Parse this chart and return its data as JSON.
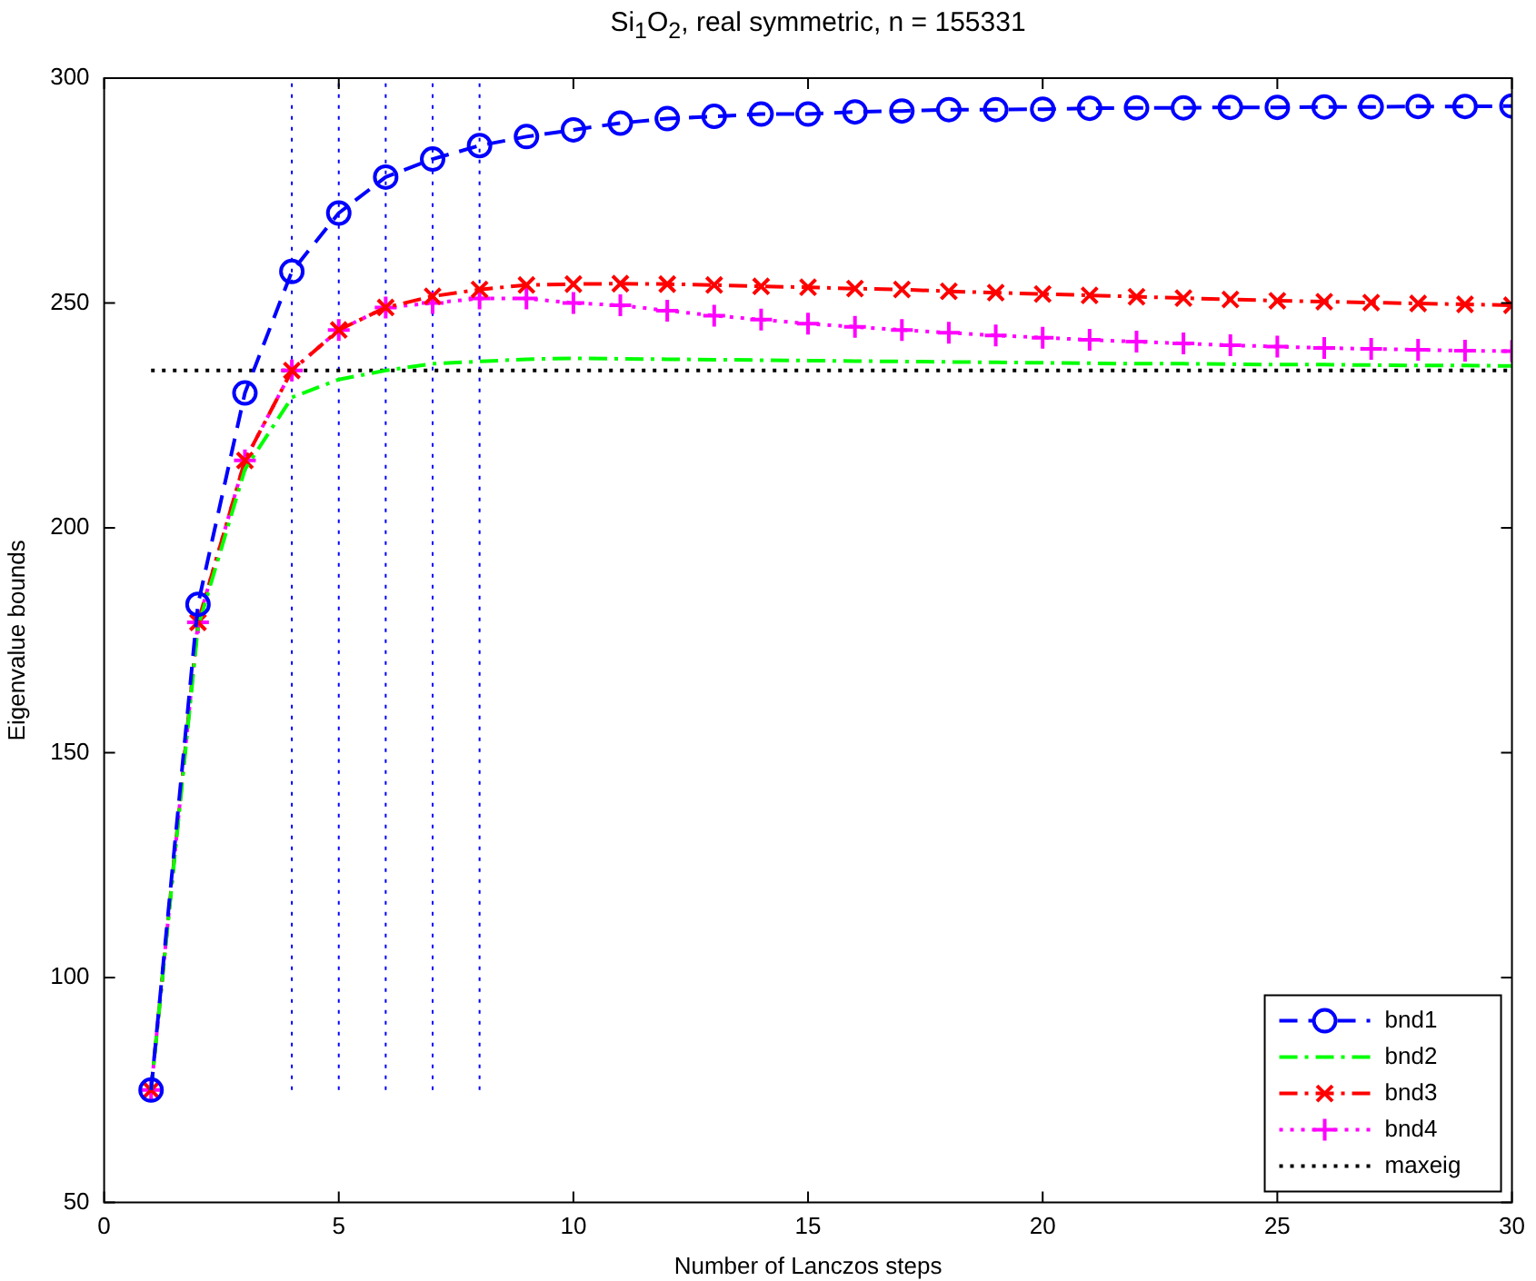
{
  "chart_data": {
    "type": "line",
    "title": "Si$_{1}$O$_{2}$, real symmetric, n = 155331",
    "xlabel": "Number of Lanczos steps",
    "ylabel": "Eigenvalue bounds",
    "x": [
      1,
      2,
      3,
      4,
      5,
      6,
      7,
      8,
      9,
      10,
      11,
      12,
      13,
      14,
      15,
      16,
      17,
      18,
      19,
      20,
      21,
      22,
      23,
      24,
      25,
      26,
      27,
      28,
      29,
      30
    ],
    "xlim": [
      0,
      30
    ],
    "xticks": [
      0,
      5,
      10,
      15,
      20,
      25,
      30
    ],
    "ylim": [
      50,
      300
    ],
    "yticks": [
      50,
      100,
      150,
      200,
      250,
      300
    ],
    "grid": false,
    "legend": "bottom right",
    "series": [
      {
        "name": "bnd1",
        "color": "#0000ff",
        "marker": "circle",
        "line_style": "dashed",
        "values": [
          75,
          183,
          230,
          257,
          270,
          278,
          282,
          285,
          287,
          288.5,
          290,
          291,
          291.5,
          292,
          292,
          292.5,
          292.7,
          293,
          293,
          293.1,
          293.3,
          293.4,
          293.4,
          293.5,
          293.5,
          293.6,
          293.6,
          293.7,
          293.7,
          293.8
        ]
      },
      {
        "name": "bnd2",
        "color": "#00ff00",
        "marker": "none",
        "line_style": "dashdot",
        "values": [
          75,
          178,
          213,
          229,
          233,
          235,
          236.5,
          237,
          237.5,
          237.7,
          237.6,
          237.5,
          237.4,
          237.3,
          237.2,
          237.1,
          237,
          236.9,
          236.8,
          236.7,
          236.6,
          236.5,
          236.5,
          236.4,
          236.3,
          236.3,
          236.2,
          236.1,
          236.1,
          236
        ]
      },
      {
        "name": "bnd3",
        "color": "#ff0000",
        "marker": "x",
        "line_style": "dashdot",
        "values": [
          75,
          179,
          215,
          235,
          244,
          249,
          251.5,
          253,
          254,
          254.2,
          254.3,
          254.2,
          254,
          253.7,
          253.5,
          253.2,
          253,
          252.6,
          252.3,
          252,
          251.7,
          251.4,
          251.1,
          250.8,
          250.5,
          250.3,
          250.1,
          249.9,
          249.7,
          249.5
        ]
      },
      {
        "name": "bnd4",
        "color": "#ff00ff",
        "marker": "cross",
        "line_style": "dotted",
        "values": [
          75,
          179,
          215,
          235,
          244,
          249,
          250,
          251,
          251,
          250,
          249.5,
          248.3,
          247.2,
          246.3,
          245.4,
          244.7,
          244,
          243.4,
          242.8,
          242.3,
          241.8,
          241.4,
          241,
          240.6,
          240.3,
          240,
          239.8,
          239.6,
          239.4,
          239.3
        ]
      },
      {
        "name": "maxeig",
        "color": "#000000",
        "marker": "none",
        "line_style": "dotted",
        "x": [
          1,
          30
        ],
        "values": [
          235,
          235
        ]
      }
    ],
    "ref_lines": [
      {
        "axis": "x",
        "value": 4,
        "color": "#0000ff",
        "line_style": "dotted"
      },
      {
        "axis": "x",
        "value": 5,
        "color": "#0000ff",
        "line_style": "dotted"
      },
      {
        "axis": "x",
        "value": 6,
        "color": "#0000ff",
        "line_style": "dotted"
      },
      {
        "axis": "x",
        "value": 7,
        "color": "#0000ff",
        "line_style": "dotted"
      },
      {
        "axis": "x",
        "value": 8,
        "color": "#0000ff",
        "line_style": "dotted"
      }
    ]
  }
}
